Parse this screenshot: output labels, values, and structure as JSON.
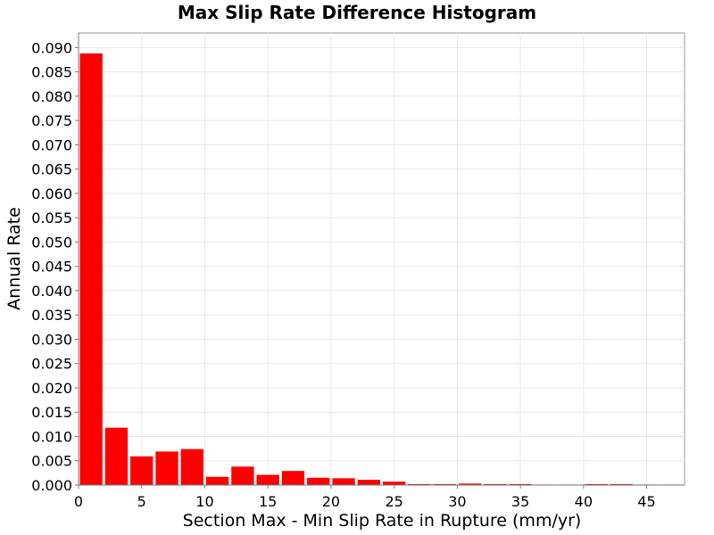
{
  "chart_data": {
    "type": "bar",
    "title": "Max Slip Rate Difference Histogram",
    "xlabel": "Section Max - Min Slip Rate in Rupture (mm/yr)",
    "ylabel": "Annual Rate",
    "xlim": [
      0,
      48
    ],
    "ylim": [
      0,
      0.093
    ],
    "bin_width": 2,
    "x": [
      1,
      3,
      5,
      7,
      9,
      11,
      13,
      15,
      17,
      19,
      21,
      23,
      25,
      27,
      29,
      31,
      33,
      35,
      37,
      39,
      41,
      43,
      45,
      47
    ],
    "values": [
      0.0888,
      0.0118,
      0.0059,
      0.0069,
      0.0074,
      0.0017,
      0.0038,
      0.0021,
      0.0029,
      0.0015,
      0.0014,
      0.0011,
      0.0007,
      0.0002,
      0.0002,
      0.0003,
      0.0002,
      0.0002,
      0.0001,
      0.0001,
      0.0002,
      0.0002,
      0.0001,
      0.0001
    ],
    "x_ticks": [
      0,
      5,
      10,
      15,
      20,
      25,
      30,
      35,
      40,
      45
    ],
    "x_tick_labels": [
      "0",
      "5",
      "10",
      "15",
      "20",
      "25",
      "30",
      "35",
      "40",
      "45"
    ],
    "y_ticks": [
      0,
      0.005,
      0.01,
      0.015,
      0.02,
      0.025,
      0.03,
      0.035,
      0.04,
      0.045,
      0.05,
      0.055,
      0.06,
      0.065,
      0.07,
      0.075,
      0.08,
      0.085,
      0.09
    ],
    "y_tick_labels": [
      "0.000",
      "0.005",
      "0.010",
      "0.015",
      "0.020",
      "0.025",
      "0.030",
      "0.035",
      "0.040",
      "0.045",
      "0.050",
      "0.055",
      "0.060",
      "0.065",
      "0.070",
      "0.075",
      "0.080",
      "0.085",
      "0.090"
    ],
    "grid": true,
    "bar_color": "#ff0000",
    "grid_color": "#e8e8e8"
  }
}
